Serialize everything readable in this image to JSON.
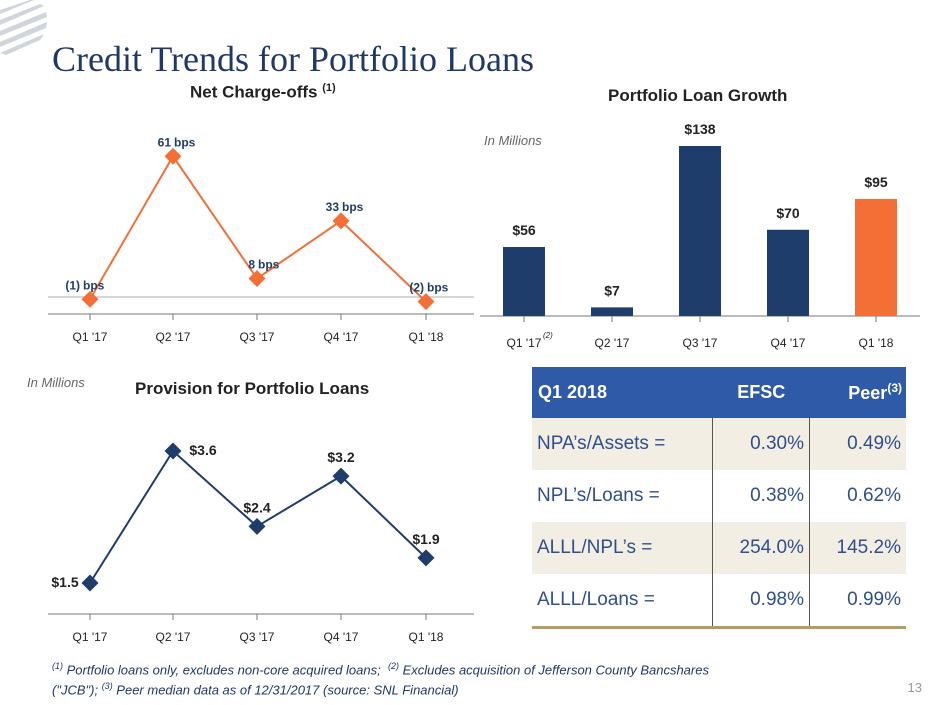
{
  "title": "Credit Trends for Portfolio Loans",
  "page_number": "13",
  "colors": {
    "navy": "#1f3d6b",
    "orange": "#f36f36",
    "table_header": "#2f5aa8",
    "gold": "#b79b5f"
  },
  "chart_data": [
    {
      "type": "line",
      "title": "Net Charge-offs",
      "title_sup": "(1)",
      "categories": [
        "Q1 '17",
        "Q2 '17",
        "Q3 '17",
        "Q4 '17",
        "Q1 '18"
      ],
      "values": [
        -1,
        61,
        8,
        33,
        -2
      ],
      "labels": [
        "(1)",
        "61",
        "8",
        "33",
        "(2)"
      ],
      "unit": "bps",
      "ylim": [
        -5,
        65
      ]
    },
    {
      "type": "bar",
      "title": "Portfolio Loan Growth",
      "note": "In Millions",
      "categories": [
        "Q1 '17",
        "Q2 '17",
        "Q3 '17",
        "Q4 '17",
        "Q1 '18"
      ],
      "category_sup": "(2)",
      "values": [
        56,
        7,
        138,
        70,
        95
      ],
      "labels": [
        "$56",
        "$7",
        "$138",
        "$70",
        "$95"
      ],
      "highlight_index": 4,
      "ylim": [
        0,
        138
      ]
    },
    {
      "type": "line",
      "title": "Provision for Portfolio Loans",
      "note": "In Millions",
      "categories": [
        "Q1 '17",
        "Q2 '17",
        "Q3 '17",
        "Q4 '17",
        "Q1 '18"
      ],
      "values": [
        1.5,
        3.6,
        2.4,
        3.2,
        1.9
      ],
      "labels": [
        "$1.5",
        "$3.6",
        "$2.4",
        "$3.2",
        "$1.9"
      ],
      "ylim": [
        1.5,
        3.6
      ]
    }
  ],
  "table": {
    "headers": [
      "Q1 2018",
      "EFSC",
      "Peer"
    ],
    "peer_sup": "(3)",
    "rows": [
      [
        "NPA’s/Assets =",
        "0.30%",
        "0.49%"
      ],
      [
        "NPL’s/Loans  =",
        "0.38%",
        "0.62%"
      ],
      [
        "ALLL/NPL’s    =",
        "254.0%",
        "145.2%"
      ],
      [
        "ALLL/Loans   =",
        "0.98%",
        "0.99%"
      ]
    ]
  },
  "footnote": {
    "n1_sup": "(1)",
    "n1": " Portfolio loans only, excludes non-core acquired loans;",
    "n2_sup": "(2)",
    "n2": " Excludes acquisition of Jefferson County Bancshares (\"JCB\");",
    "n3_sup": "(3)",
    "n3": " Peer median data as of 12/31/2017 (source: SNL Financial)"
  }
}
